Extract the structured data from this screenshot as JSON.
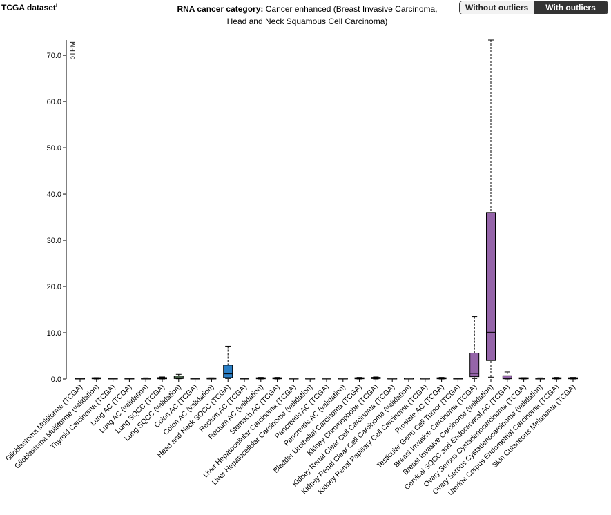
{
  "header": {
    "dataset_title": "TCGA dataset",
    "info_mark": "i",
    "category_label": "RNA cancer category:",
    "category_value_line1": "Cancer enhanced (Breast Invasive Carcinoma,",
    "category_value_line2": "Head and Neck Squamous Cell Carcinoma)"
  },
  "toggle": {
    "without_label": "Without outliers",
    "with_label": "With outliers",
    "selected": "With outliers"
  },
  "colors": {
    "default_box": "#90c090",
    "neutral_box": "#9a9a9a",
    "head_neck": "#2a7fc7",
    "breast": "#9565a9"
  },
  "chart_data": {
    "type": "box",
    "ylabel": "pTPM",
    "ylim": [
      0,
      73
    ],
    "yticks": [
      "0.0",
      "10.0",
      "20.0",
      "30.0",
      "40.0",
      "50.0",
      "60.0",
      "70.0"
    ],
    "ytick_values": [
      0,
      10,
      20,
      30,
      40,
      50,
      60,
      70
    ],
    "categories": [
      "Glioblastoma Multiforme (TCGA)",
      "Glioblastoma Multiforme (validation)",
      "Thyroid Carcinoma (TCGA)",
      "Lung AC (TCGA)",
      "Lung AC (validation)",
      "Lung SQCC (TCGA)",
      "Lung SQCC (validation)",
      "Colon AC (TCGA)",
      "Colon AC (validation)",
      "Head and Neck SQCC (TCGA)",
      "Rectum AC (TCGA)",
      "Rectum AC (validation)",
      "Stomach AC (TCGA)",
      "Liver Hepatocellular Carcinoma (TCGA)",
      "Liver Hepatocellular Carcinoma (validation)",
      "Pancreatic AC (TCGA)",
      "Pancreatic AC (validation)",
      "Bladder Urothelial Carcinoma (TCGA)",
      "Kidney Chromophobe (TCGA)",
      "Kidney Renal Clear Cell Carcinoma (TCGA)",
      "Kidney Renal Clear Cell Carcinoma (validation)",
      "Kidney Renal Papillary Cell Carcinoma (TCGA)",
      "Prostate AC (TCGA)",
      "Testicular Germ Cell Tumor (TCGA)",
      "Breast Invasive Carcinoma (TCGA)",
      "Breast Invasive Carcinoma (validation)",
      "Cervical SQCC and Endocervical AC (TCGA)",
      "Ovary Serous Cystadenocarcinoma (TCGA)",
      "Ovary Serous Cystadenocarcinoma (validation)",
      "Uterine Corpus Endometrial Carcinoma (TCGA)",
      "Skin Cutaneous Melanoma (TCGA)"
    ],
    "boxes": [
      {
        "min": 0,
        "q1": 0,
        "median": 0.05,
        "q3": 0.1,
        "max": 0.15,
        "color": "neutral"
      },
      {
        "min": 0,
        "q1": 0.05,
        "median": 0.1,
        "q3": 0.2,
        "max": 0.3,
        "color": "neutral"
      },
      {
        "min": 0,
        "q1": 0,
        "median": 0.05,
        "q3": 0.1,
        "max": 0.15,
        "color": "neutral"
      },
      {
        "min": 0,
        "q1": 0,
        "median": 0.05,
        "q3": 0.1,
        "max": 0.15,
        "color": "neutral"
      },
      {
        "min": 0,
        "q1": 0,
        "median": 0.05,
        "q3": 0.15,
        "max": 0.25,
        "color": "neutral"
      },
      {
        "min": 0,
        "q1": 0.05,
        "median": 0.15,
        "q3": 0.3,
        "max": 0.45,
        "color": "neutral"
      },
      {
        "min": 0.05,
        "q1": 0.1,
        "median": 0.3,
        "q3": 0.6,
        "max": 1.0,
        "color": "default"
      },
      {
        "min": 0,
        "q1": 0,
        "median": 0.05,
        "q3": 0.1,
        "max": 0.15,
        "color": "neutral"
      },
      {
        "min": 0,
        "q1": 0.02,
        "median": 0.05,
        "q3": 0.15,
        "max": 0.25,
        "color": "neutral"
      },
      {
        "min": 0.1,
        "q1": 0.3,
        "median": 1.1,
        "q3": 3.0,
        "max": 7.1,
        "color": "head_neck"
      },
      {
        "min": 0,
        "q1": 0,
        "median": 0.05,
        "q3": 0.1,
        "max": 0.15,
        "color": "neutral"
      },
      {
        "min": 0,
        "q1": 0.05,
        "median": 0.1,
        "q3": 0.25,
        "max": 0.35,
        "color": "neutral"
      },
      {
        "min": 0,
        "q1": 0.05,
        "median": 0.1,
        "q3": 0.25,
        "max": 0.35,
        "color": "neutral"
      },
      {
        "min": 0,
        "q1": 0,
        "median": 0.02,
        "q3": 0.05,
        "max": 0.1,
        "color": "neutral"
      },
      {
        "min": 0,
        "q1": 0,
        "median": 0.02,
        "q3": 0.05,
        "max": 0.1,
        "color": "neutral"
      },
      {
        "min": 0,
        "q1": 0,
        "median": 0.02,
        "q3": 0.05,
        "max": 0.1,
        "color": "neutral"
      },
      {
        "min": 0,
        "q1": 0,
        "median": 0.02,
        "q3": 0.05,
        "max": 0.1,
        "color": "neutral"
      },
      {
        "min": 0,
        "q1": 0.05,
        "median": 0.1,
        "q3": 0.25,
        "max": 0.35,
        "color": "neutral"
      },
      {
        "min": 0,
        "q1": 0.1,
        "median": 0.2,
        "q3": 0.35,
        "max": 0.45,
        "color": "neutral"
      },
      {
        "min": 0,
        "q1": 0,
        "median": 0.02,
        "q3": 0.05,
        "max": 0.1,
        "color": "neutral"
      },
      {
        "min": 0,
        "q1": 0,
        "median": 0.01,
        "q3": 0.03,
        "max": 0.05,
        "color": "neutral"
      },
      {
        "min": 0,
        "q1": 0,
        "median": 0.01,
        "q3": 0.03,
        "max": 0.05,
        "color": "neutral"
      },
      {
        "min": 0,
        "q1": 0.05,
        "median": 0.1,
        "q3": 0.25,
        "max": 0.35,
        "color": "neutral"
      },
      {
        "min": 0,
        "q1": 0,
        "median": 0.05,
        "q3": 0.1,
        "max": 0.15,
        "color": "neutral"
      },
      {
        "min": 0.1,
        "q1": 0.5,
        "median": 1.2,
        "q3": 5.6,
        "max": 13.5,
        "color": "breast"
      },
      {
        "min": 0.4,
        "q1": 4.0,
        "median": 10.1,
        "q3": 36.0,
        "max": 73.3,
        "color": "breast"
      },
      {
        "min": 0,
        "q1": 0.05,
        "median": 0.2,
        "q3": 0.7,
        "max": 1.5,
        "color": "breast"
      },
      {
        "min": 0,
        "q1": 0.05,
        "median": 0.1,
        "q3": 0.2,
        "max": 0.3,
        "color": "neutral"
      },
      {
        "min": 0,
        "q1": 0,
        "median": 0.05,
        "q3": 0.15,
        "max": 0.25,
        "color": "neutral"
      },
      {
        "min": 0,
        "q1": 0.05,
        "median": 0.1,
        "q3": 0.25,
        "max": 0.35,
        "color": "neutral"
      },
      {
        "min": 0,
        "q1": 0.05,
        "median": 0.1,
        "q3": 0.2,
        "max": 0.35,
        "color": "neutral"
      }
    ]
  }
}
